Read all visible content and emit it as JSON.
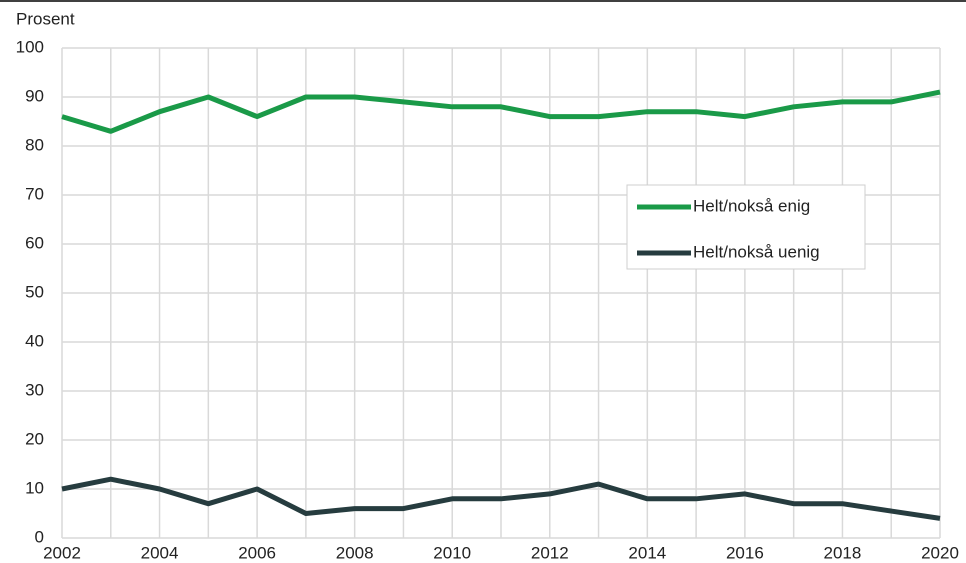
{
  "chart_data": {
    "type": "line",
    "y_label": "Prosent",
    "x": [
      2002,
      2003,
      2004,
      2005,
      2006,
      2007,
      2008,
      2009,
      2010,
      2011,
      2012,
      2013,
      2014,
      2015,
      2016,
      2017,
      2018,
      2019,
      2020
    ],
    "series": [
      {
        "name": "Helt/nokså enig",
        "color": "#1a9a48",
        "values": [
          86,
          83,
          87,
          90,
          86,
          90,
          90,
          89,
          88,
          88,
          86,
          86,
          87,
          87,
          86,
          88,
          89,
          89,
          91
        ]
      },
      {
        "name": "Helt/nokså uenig",
        "color": "#263c3f",
        "values": [
          10,
          12,
          10,
          7,
          10,
          5,
          6,
          6,
          8,
          8,
          9,
          11,
          8,
          8,
          9,
          7,
          7,
          5.5,
          4
        ]
      }
    ],
    "xlim": [
      2002,
      2020
    ],
    "xticks": [
      2002,
      2004,
      2006,
      2008,
      2010,
      2012,
      2014,
      2016,
      2018,
      2020
    ],
    "ylim": [
      0,
      100
    ],
    "yticks": [
      0,
      10,
      20,
      30,
      40,
      50,
      60,
      70,
      80,
      90,
      100
    ],
    "grid": true,
    "legend": "right"
  }
}
